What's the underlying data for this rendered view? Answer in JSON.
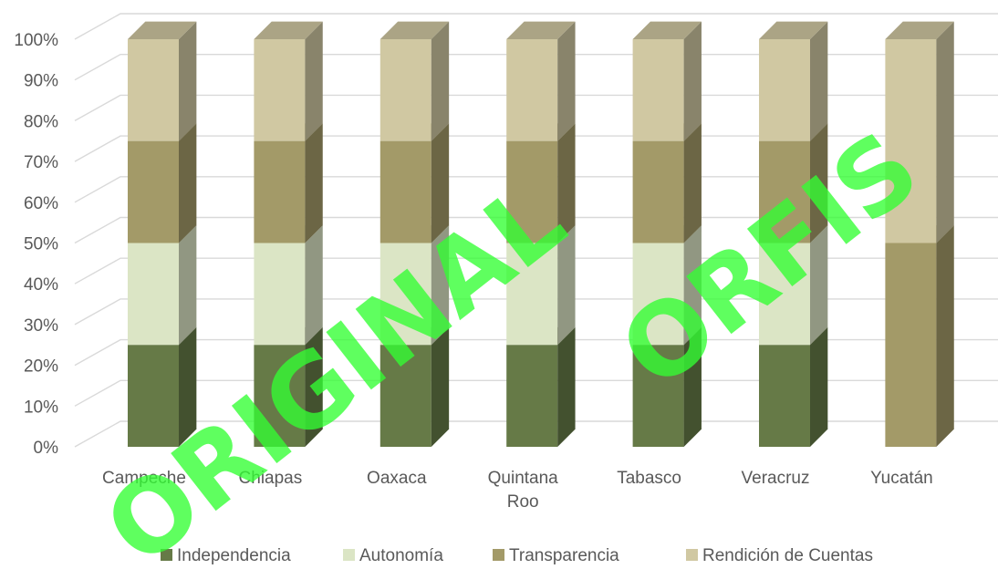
{
  "watermark": {
    "text": "ORIGINAL ORFIS",
    "color": "#33ff33"
  },
  "chart_data": {
    "type": "bar",
    "stacked": "percent",
    "three_d": true,
    "title": "",
    "xlabel": "",
    "ylabel": "",
    "ylim": [
      0,
      100
    ],
    "y_ticks": [
      "0%",
      "10%",
      "20%",
      "30%",
      "40%",
      "50%",
      "60%",
      "70%",
      "80%",
      "90%",
      "100%"
    ],
    "grid": true,
    "legend_position": "bottom",
    "categories": [
      [
        "Campeche"
      ],
      [
        "Chiapas"
      ],
      [
        "Oaxaca"
      ],
      [
        "Quintana",
        "Roo"
      ],
      [
        "Tabasco"
      ],
      [
        "Veracruz"
      ],
      [
        "Yucatán"
      ]
    ],
    "category_names": [
      "Campeche",
      "Chiapas",
      "Oaxaca",
      "Quintana Roo",
      "Tabasco",
      "Veracruz",
      "Yucatán"
    ],
    "series": [
      {
        "name": "Independencia",
        "color": "#667a47",
        "values": [
          25,
          25,
          25,
          25,
          25,
          25,
          0
        ]
      },
      {
        "name": "Autonomía",
        "color": "#dbe5c5",
        "values": [
          25,
          25,
          25,
          25,
          25,
          25,
          0
        ]
      },
      {
        "name": "Transparencia",
        "color": "#a39a68",
        "values": [
          25,
          25,
          25,
          25,
          25,
          25,
          50
        ]
      },
      {
        "name": "Rendición de Cuentas",
        "color": "#d0c8a2",
        "values": [
          25,
          25,
          25,
          25,
          25,
          25,
          50
        ]
      }
    ]
  }
}
